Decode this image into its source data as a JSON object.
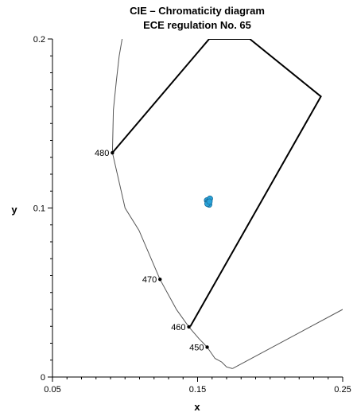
{
  "chart_data": {
    "type": "scatter",
    "title": "CIE – Chromaticity diagram",
    "subtitle": "ECE regulation No. 65",
    "xlabel": "x",
    "ylabel": "y",
    "xlim": [
      0.05,
      0.25
    ],
    "ylim": [
      0,
      0.2
    ],
    "x_tick_labels": [
      "0.05",
      "0.15",
      "0.25"
    ],
    "x_tick_values": [
      0.05,
      0.15,
      0.25
    ],
    "y_tick_labels": [
      "0",
      "0.1",
      "0.2"
    ],
    "y_tick_values": [
      0,
      0.1,
      0.2
    ],
    "grid": false,
    "spectral_locus": [
      [
        0.098,
        0.2
      ],
      [
        0.096,
        0.19
      ],
      [
        0.094,
        0.175
      ],
      [
        0.092,
        0.158
      ],
      [
        0.0913,
        0.1327
      ],
      [
        0.1,
        0.1
      ],
      [
        0.1096,
        0.0868
      ],
      [
        0.1241,
        0.0578
      ],
      [
        0.1355,
        0.0399
      ],
      [
        0.144,
        0.0297
      ],
      [
        0.151,
        0.0227
      ],
      [
        0.1566,
        0.0177
      ],
      [
        0.162,
        0.011
      ],
      [
        0.1666,
        0.0089
      ],
      [
        0.17,
        0.006
      ],
      [
        0.174,
        0.005
      ]
    ],
    "purple_line": [
      [
        0.174,
        0.005
      ],
      [
        0.25,
        0.04
      ]
    ],
    "region_boundary": [
      [
        0.0913,
        0.1327
      ],
      [
        0.158,
        0.2
      ],
      [
        0.186,
        0.2
      ],
      [
        0.235,
        0.166
      ],
      [
        0.145,
        0.03
      ]
    ],
    "wavelength_markers": [
      {
        "label": "480",
        "x": 0.0913,
        "y": 0.1327
      },
      {
        "label": "470",
        "x": 0.1241,
        "y": 0.0578
      },
      {
        "label": "460",
        "x": 0.144,
        "y": 0.0297
      },
      {
        "label": "450",
        "x": 0.1566,
        "y": 0.0177
      }
    ],
    "series": [
      {
        "color": "#29a3d9",
        "points": [
          [
            0.1565,
            0.1045
          ],
          [
            0.1585,
            0.1055
          ],
          [
            0.157,
            0.1035
          ],
          [
            0.158,
            0.102
          ],
          [
            0.1568,
            0.1025
          ],
          [
            0.1582,
            0.1038
          ]
        ]
      }
    ]
  }
}
